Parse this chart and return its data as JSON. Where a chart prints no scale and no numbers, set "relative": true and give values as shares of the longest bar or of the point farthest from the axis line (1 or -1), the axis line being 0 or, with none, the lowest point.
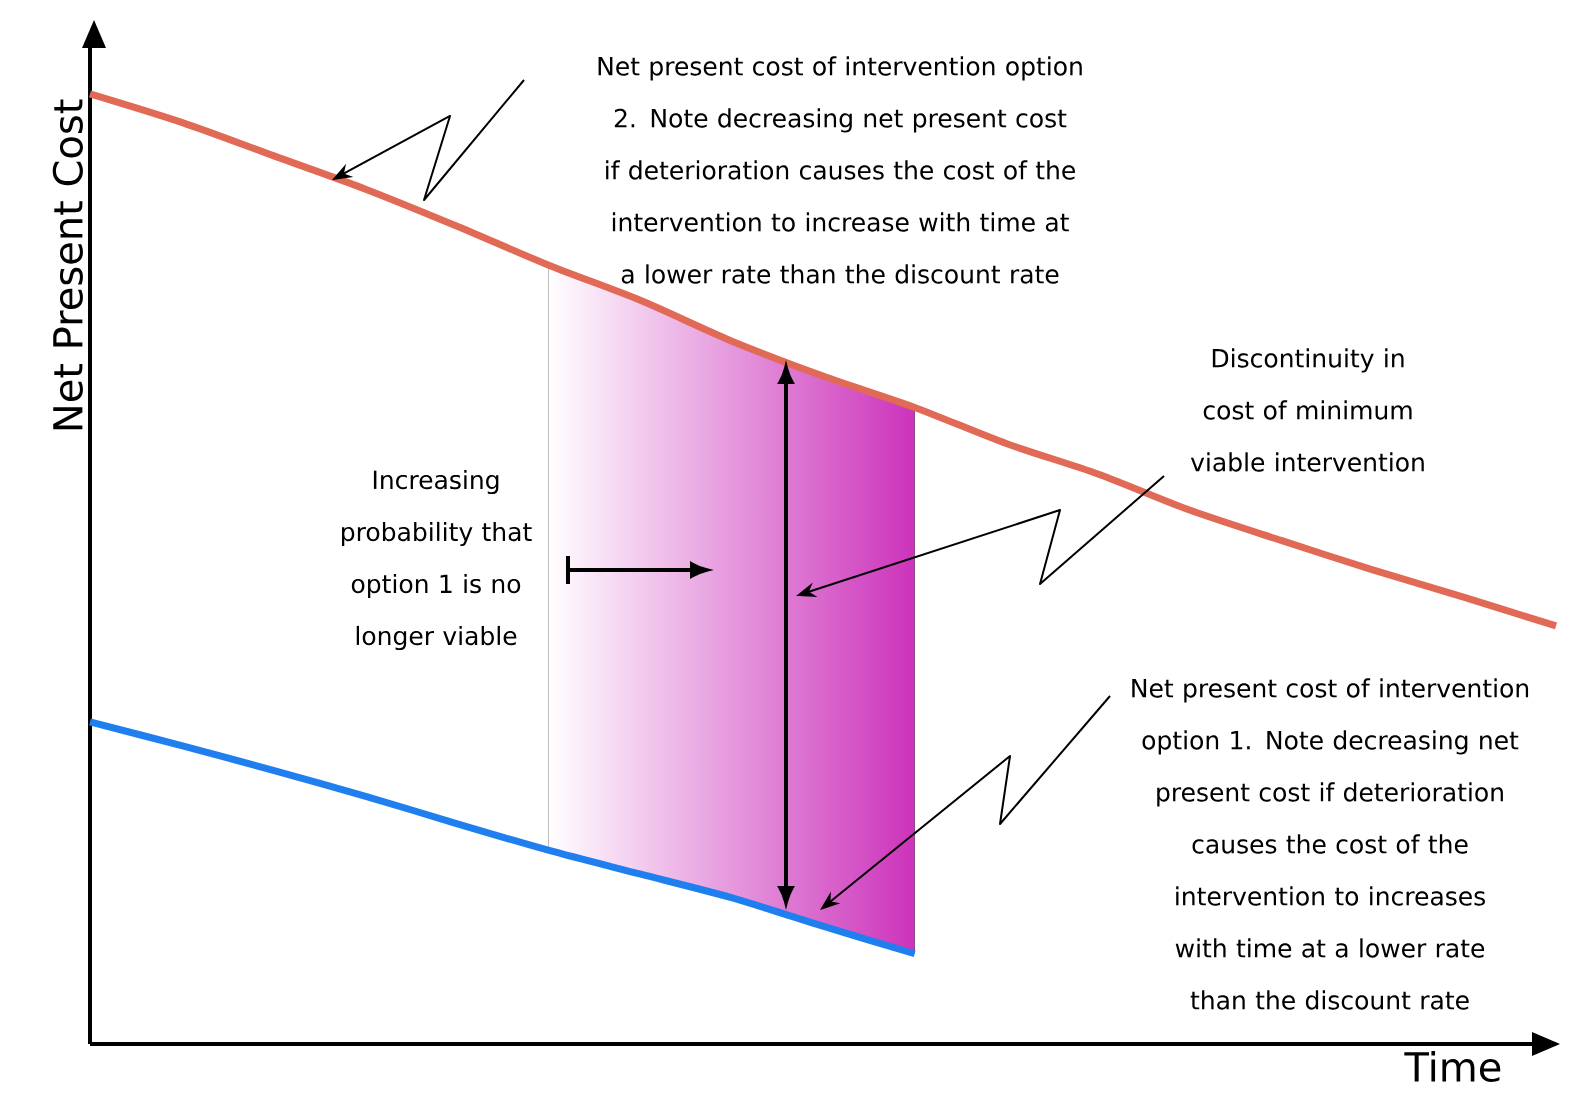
{
  "chart_data": {
    "type": "line",
    "relative": true,
    "xlabel": "Time",
    "ylabel": "Net Present Cost",
    "categories": [
      null,
      null,
      null,
      null,
      null,
      null,
      null,
      null,
      null,
      null,
      null,
      null,
      null,
      null,
      null,
      null,
      null
    ],
    "series": [
      {
        "color": "#e06a55",
        "values": [
          1.0,
          0.97,
          0.935,
          0.9,
          0.861,
          0.82,
          0.783,
          0.74,
          0.703,
          0.67,
          0.632,
          0.6,
          0.562,
          0.53,
          0.499,
          0.47,
          0.44
        ]
      },
      {
        "color": "#1f7fef",
        "values": [
          0.339,
          0.314,
          0.288,
          0.261,
          0.232,
          0.204,
          0.179,
          0.154,
          0.124,
          0.095,
          null,
          null,
          null,
          null,
          null,
          null,
          null
        ]
      }
    ],
    "annotations": [
      "Net present cost of intervention option 2. Note decreasing net present cost if deterioration causes the cost of the intervention to increase with time at a lower rate than the discount rate",
      "Discontinuity in cost of minimum viable intervention",
      "Increasing probability that option 1 is no longer viable",
      "Net present cost of intervention option 1. Note decreasing net present cost if deterioration causes the cost of the intervention to increases with time at a lower rate than the discount rate"
    ],
    "marker": "none",
    "line_style": "solid"
  }
}
